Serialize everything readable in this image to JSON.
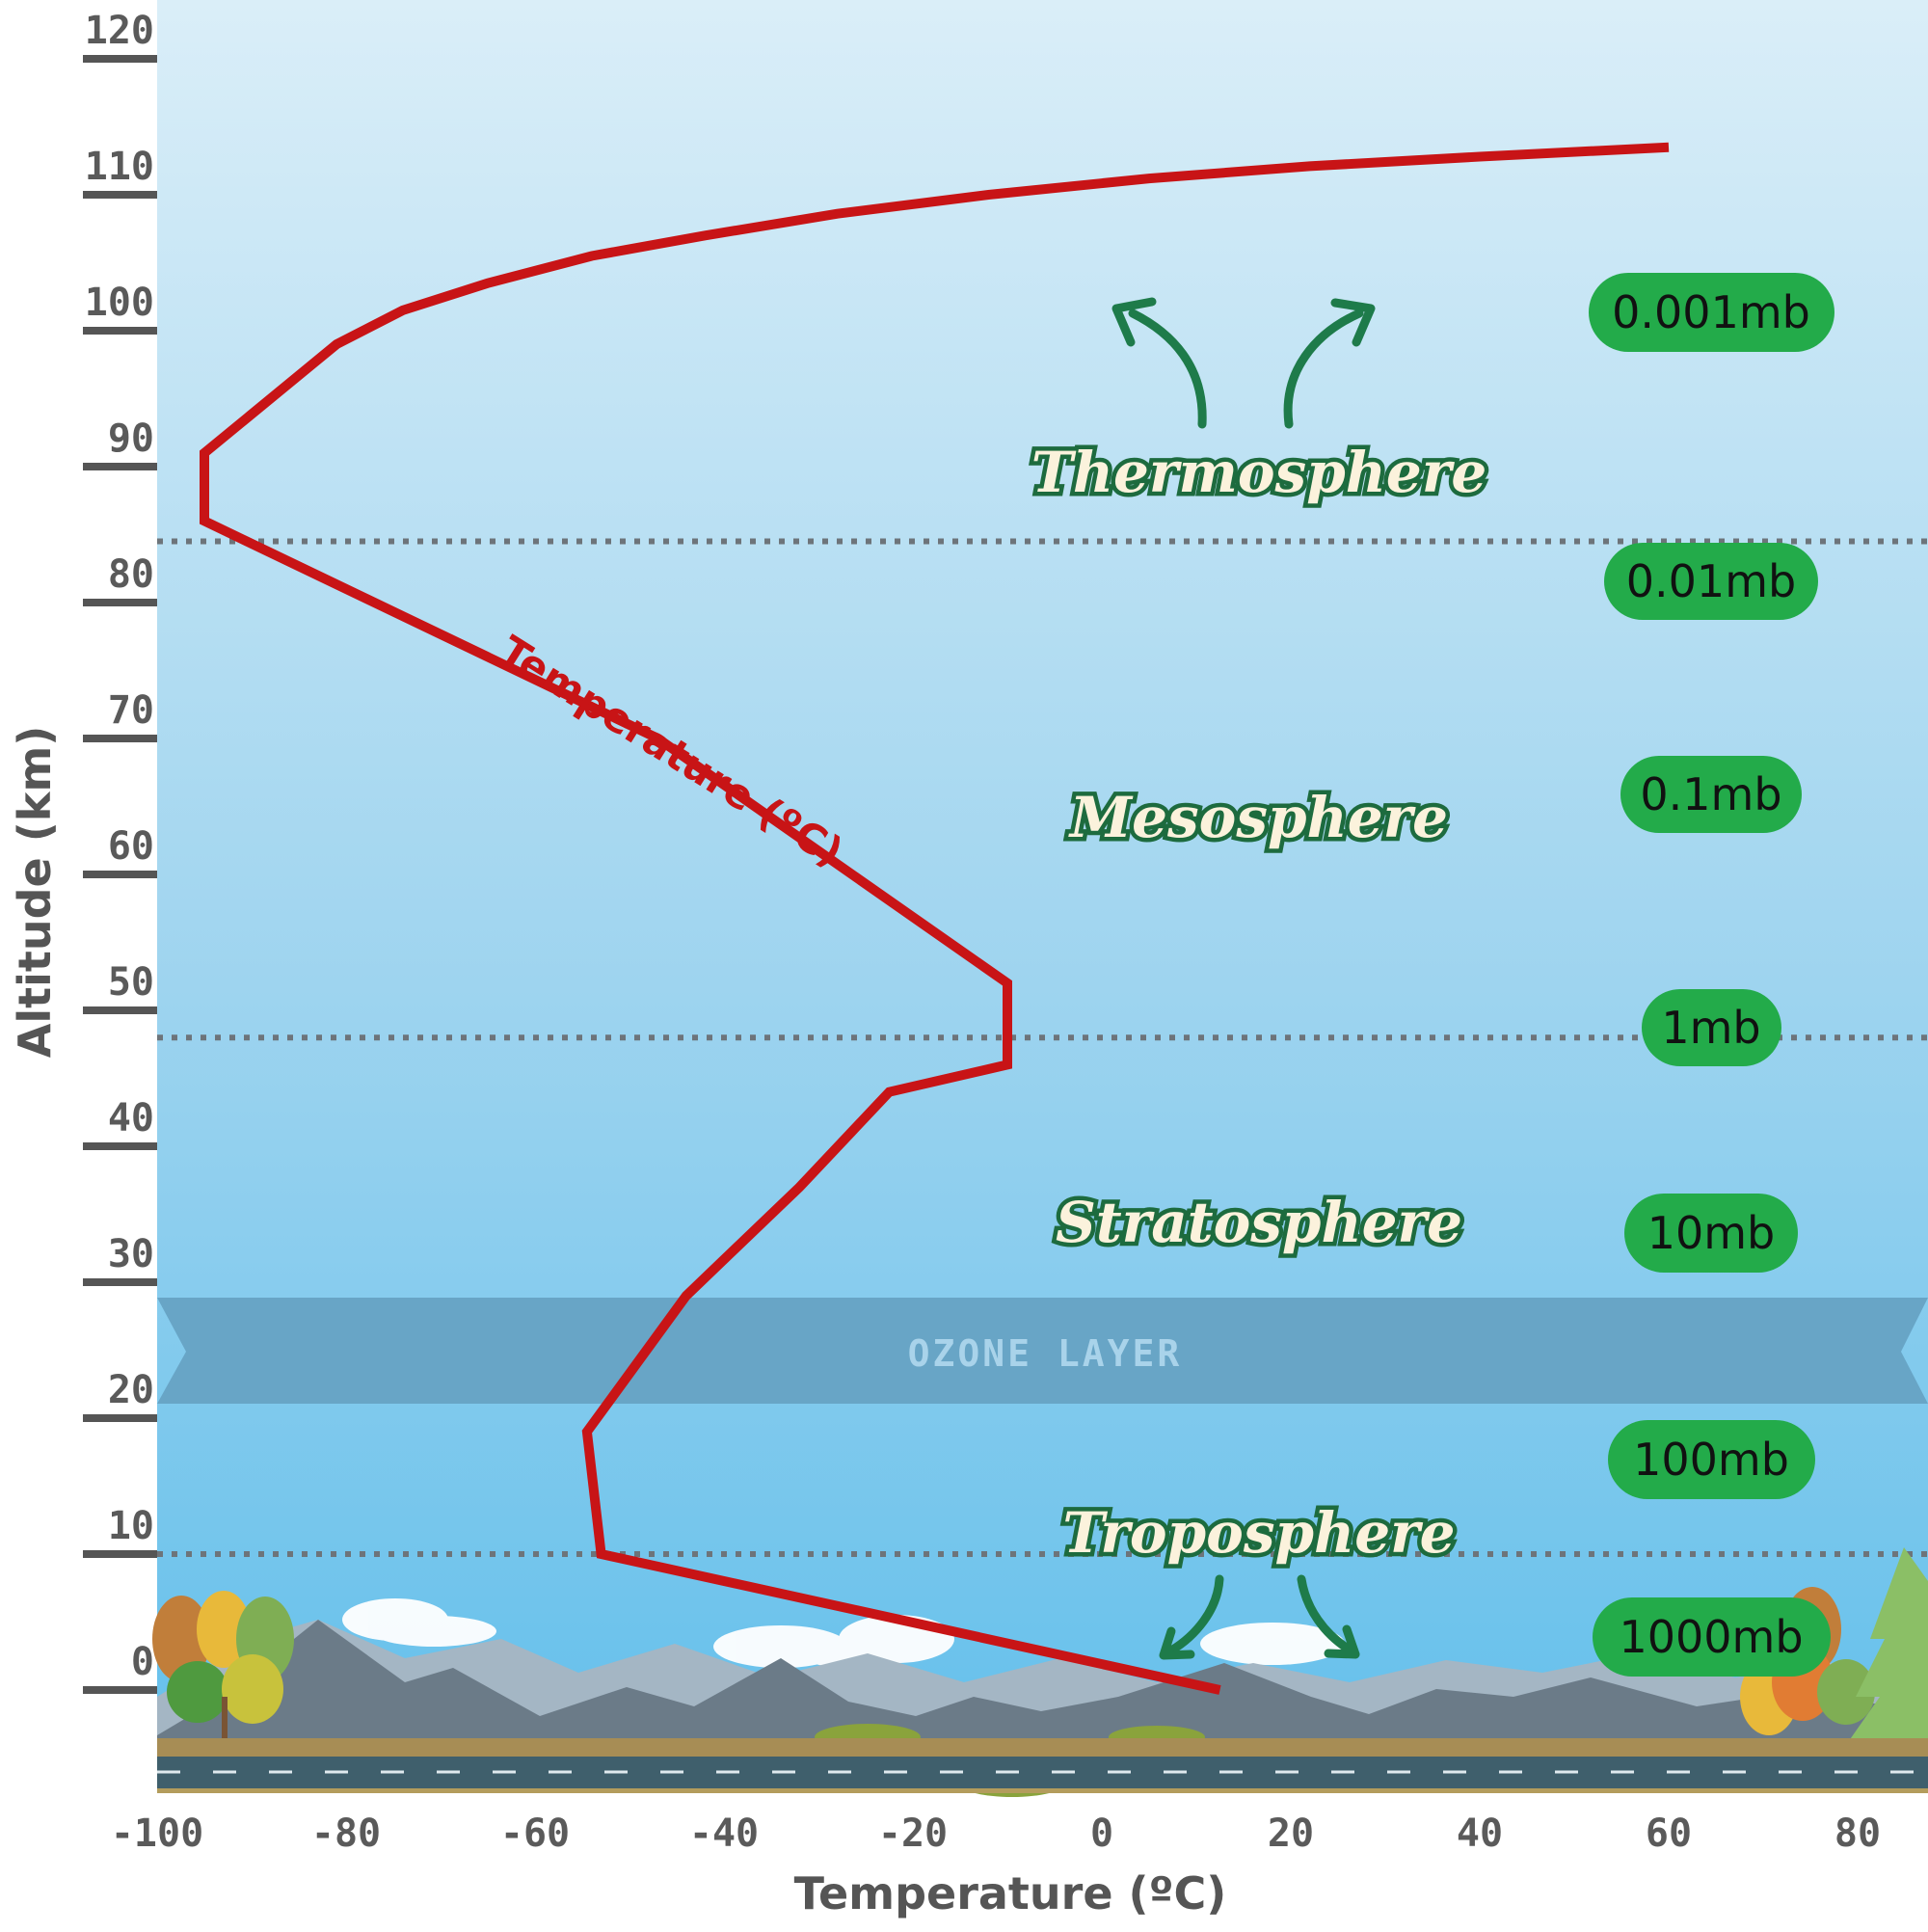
{
  "diagram": {
    "layers": [
      {
        "name": "Thermosphere"
      },
      {
        "name": "Mesosphere"
      },
      {
        "name": "Stratosphere"
      },
      {
        "name": "Troposphere"
      }
    ],
    "band_label": "OZONE LAYER",
    "curve_label": "Temperature (ºC)",
    "pressures": [
      "0.001mb",
      "0.01mb",
      "0.1mb",
      "1mb",
      "10mb",
      "100mb",
      "1000mb"
    ]
  },
  "chart_data": {
    "type": "line",
    "xlabel": "Temperature (ºC)",
    "ylabel": "Altitude (km)",
    "xlim": [
      -100,
      85
    ],
    "ylim": [
      -7,
      123
    ],
    "x_ticks": [
      "-100",
      "-80",
      "-60",
      "-40",
      "-20",
      "0",
      "20",
      "40",
      "60",
      "80"
    ],
    "y_ticks": [
      "0",
      "10",
      "20",
      "30",
      "40",
      "50",
      "60",
      "70",
      "80",
      "90",
      "100",
      "110",
      "120"
    ],
    "grid": false,
    "series": [
      {
        "color": "#c81416",
        "x": [
          12.5,
          -53,
          -54.5,
          -44,
          -32,
          -22.5,
          -10,
          -10,
          -47,
          -95,
          -95,
          -81,
          -74,
          -65,
          -54,
          -42,
          -28,
          -12,
          5,
          22,
          40,
          60
        ],
        "y": [
          0,
          10,
          19,
          29,
          37,
          44,
          46,
          52,
          70,
          86,
          91,
          99,
          101.5,
          103.5,
          105.5,
          107,
          108.6,
          110,
          111.2,
          112.1,
          112.8,
          113.5
        ]
      }
    ],
    "dotted_boundaries_km": [
      10,
      48,
      84.5
    ],
    "colors": {
      "sky_top": "#daeef8",
      "sky_bottom": "#6cc3ec",
      "curve": "#c81416",
      "pill": "#23ab4a",
      "ozone": "#68a5c6"
    }
  }
}
